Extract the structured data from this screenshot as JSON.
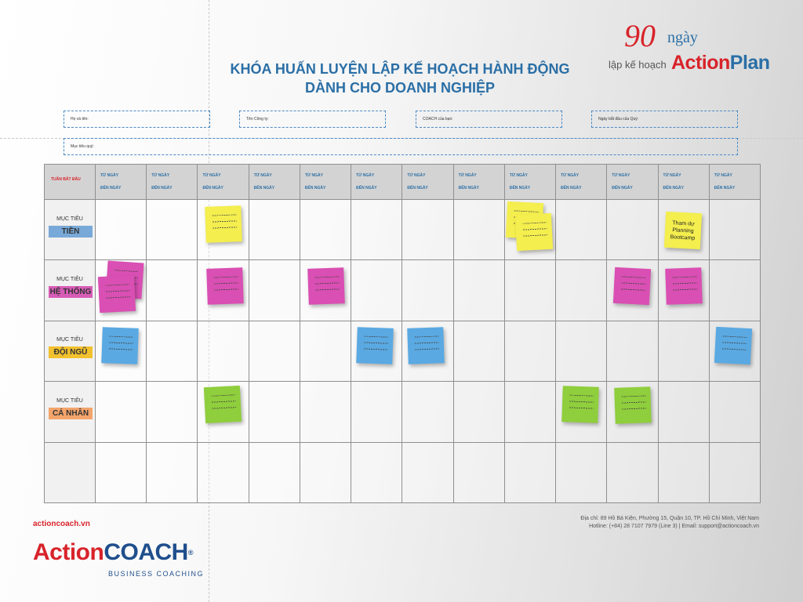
{
  "logo90": {
    "number": "90",
    "ngay": "ngày",
    "lap": "lập kế hoạch",
    "ap_part1": "Action",
    "ap_part2": "Plan"
  },
  "title": {
    "line1": "KHÓA HUẤN LUYỆN LẬP KẾ HOẠCH HÀNH ĐỘNG",
    "line2": "DÀNH CHO DOANH NGHIỆP"
  },
  "form": {
    "name_label": "Họ và tên:",
    "company_label": "Tên Công ty:",
    "coach_label": "COACH của bạn:",
    "date_label": "Ngày bắt đầu của Quý:",
    "goal_label": "Mục tiêu quý:"
  },
  "grid": {
    "corner": "TUẦN BẮT ĐẦU",
    "col_from": "TỪ NGÀY",
    "col_to": "ĐẾN NGÀY",
    "week_count": 13,
    "rows": [
      {
        "prefix": "MỤC TIÊU",
        "name": "TIỀN",
        "color": "#78a9d8"
      },
      {
        "prefix": "MỤC TIÊU",
        "name": "HỆ THỐNG",
        "color": "#d65cb6"
      },
      {
        "prefix": "MỤC TIÊU",
        "name": "ĐỘI NGŨ",
        "color": "#f2c12e"
      },
      {
        "prefix": "MỤC TIÊU",
        "name": "CÁ NHÂN",
        "color": "#f3a46b"
      },
      {
        "prefix": "",
        "name": "",
        "color": ""
      }
    ],
    "sticky_text": "Tham dự Planning Bootcamp",
    "note_colors": {
      "yellow": "#f4ee4e",
      "pink": "#d94fb3",
      "blue": "#5aa9e2",
      "green": "#8fce3c"
    }
  },
  "footer": {
    "site": "actioncoach.vn",
    "brand_part1": "ActionCOACH",
    "brand_reg": "®",
    "brand_sub": "BUSINESS COACHING",
    "address": "Địa chỉ: 89 Hồ Bá Kiện, Phường 15, Quận 10, TP. Hồ Chí Minh, Việt Nam",
    "contact": "Hotline: (+84) 28 7107 7979 (Line 3)  |  Email: support@actioncoach.vn"
  }
}
